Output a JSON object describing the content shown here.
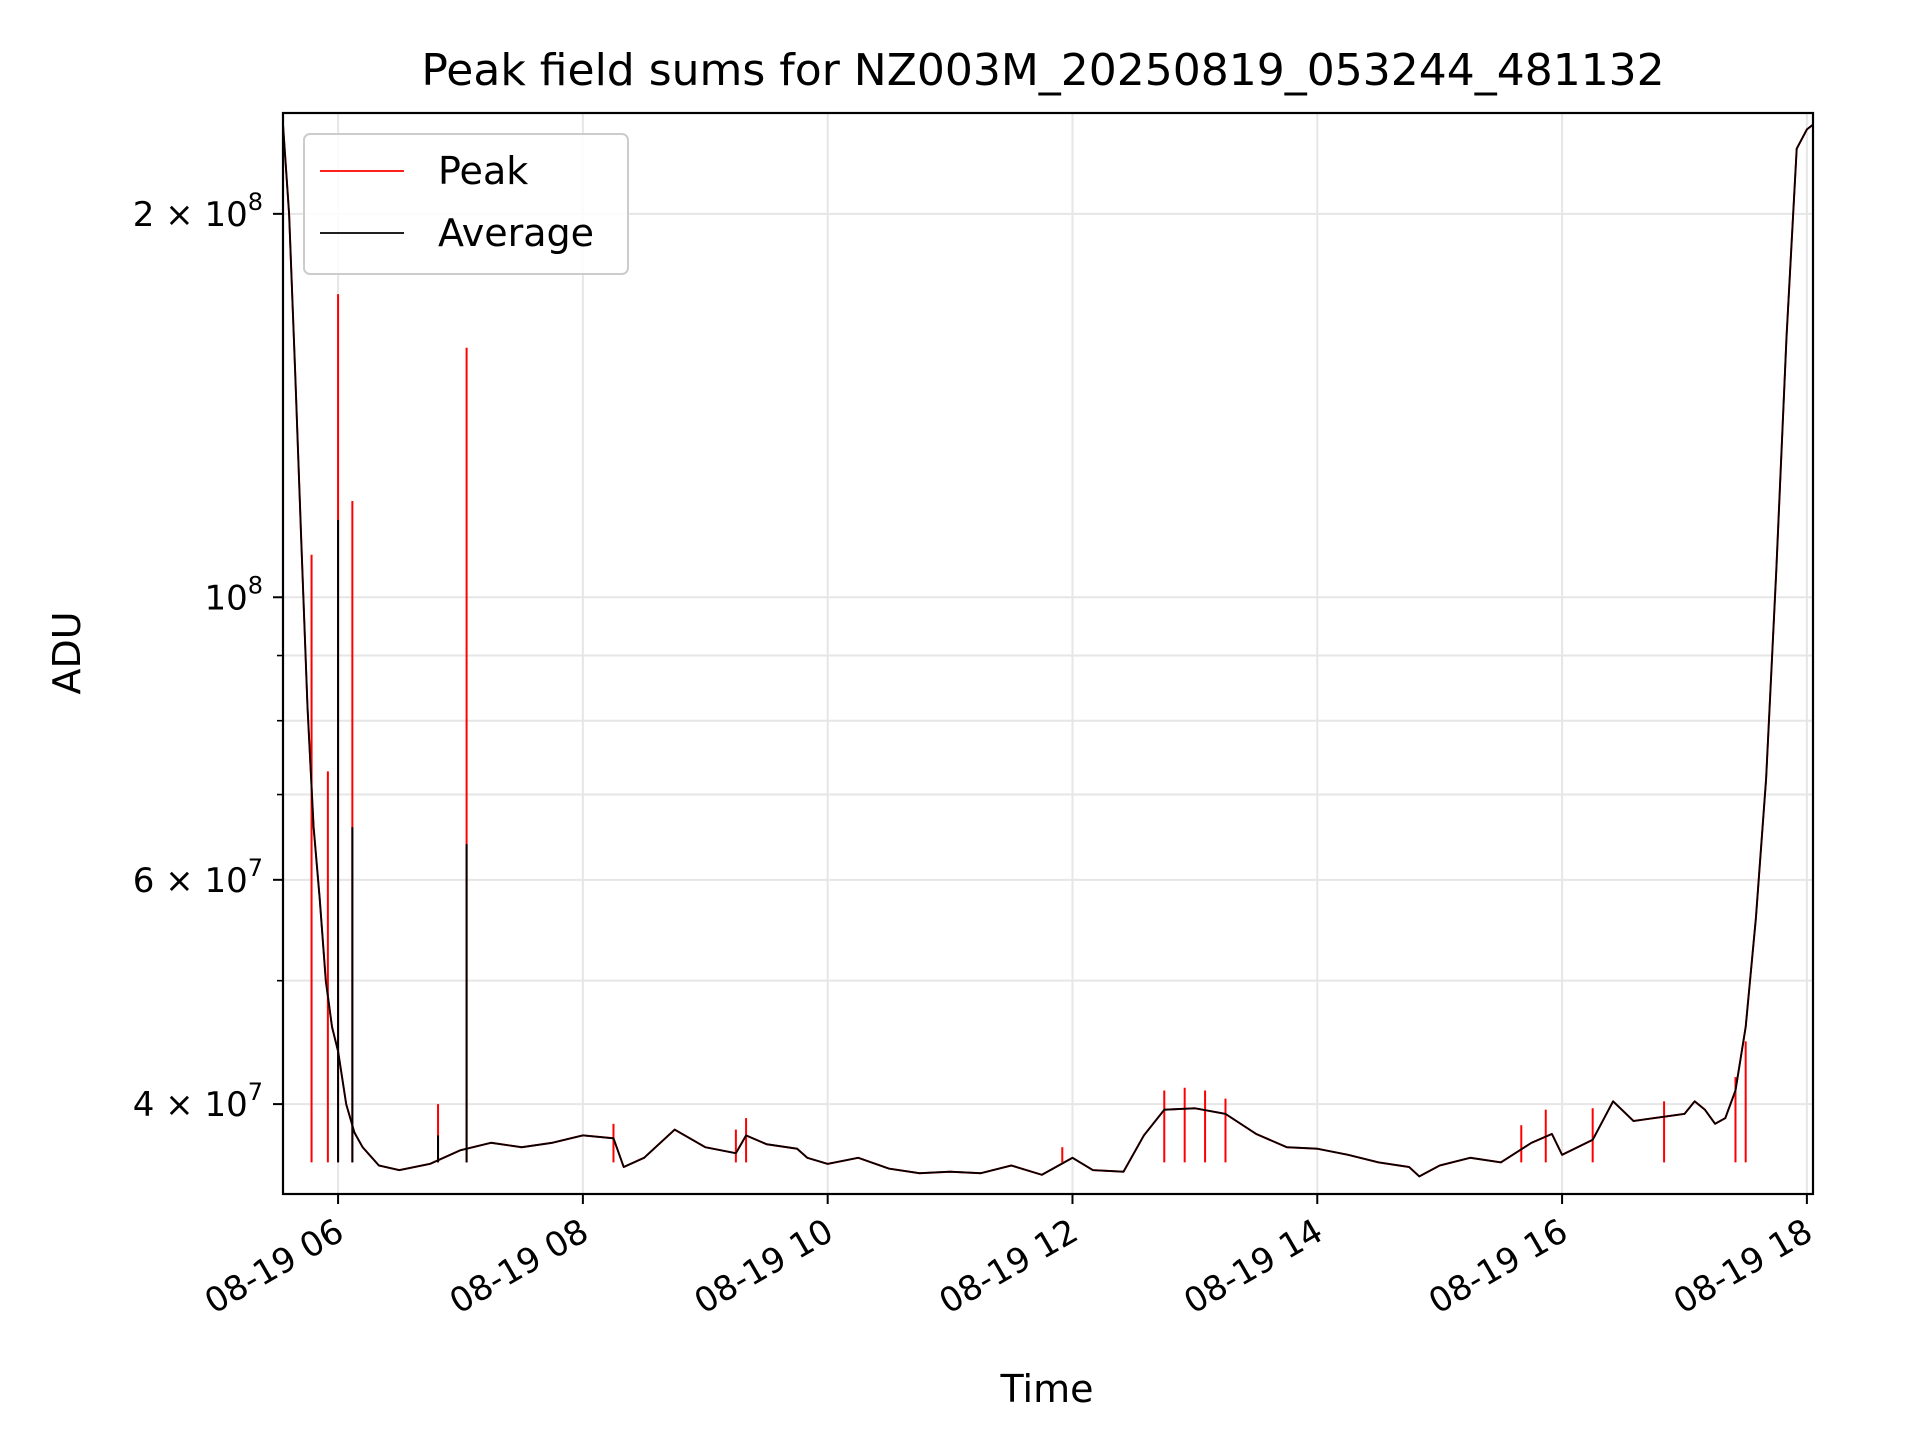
{
  "chart_data": {
    "type": "line",
    "title": "Peak field sums for NZ003M_20250819_053244_481132",
    "xlabel": "Time",
    "ylabel": "ADU",
    "yscale": "log",
    "grid": true,
    "legend_position": "upper-left",
    "xlim": [
      "08-19 05:33",
      "08-19 18:03"
    ],
    "ylim": [
      34000000,
      240000000
    ],
    "x_ticks": [
      {
        "value": "08-19 06:00",
        "label": "08-19 06"
      },
      {
        "value": "08-19 08:00",
        "label": "08-19 08"
      },
      {
        "value": "08-19 10:00",
        "label": "08-19 10"
      },
      {
        "value": "08-19 12:00",
        "label": "08-19 12"
      },
      {
        "value": "08-19 14:00",
        "label": "08-19 14"
      },
      {
        "value": "08-19 16:00",
        "label": "08-19 16"
      },
      {
        "value": "08-19 18:00",
        "label": "08-19 18"
      }
    ],
    "y_ticks": [
      {
        "value": 40000000,
        "label": "4 × 10^7",
        "mant": "4 × 10",
        "exp": "7"
      },
      {
        "value": 60000000,
        "label": "6 × 10^7",
        "mant": "6 × 10",
        "exp": "7"
      },
      {
        "value": 100000000,
        "label": "10^8",
        "mant": "10",
        "exp": "8"
      },
      {
        "value": 200000000,
        "label": "2 × 10^8",
        "mant": "2 × 10",
        "exp": "8"
      }
    ],
    "y_minor_ticks": [
      50000000,
      70000000,
      80000000,
      90000000
    ],
    "series": [
      {
        "name": "Average",
        "color": "#000000",
        "points": [
          [
            "08-19 05:33",
            235000000
          ],
          [
            "08-19 05:36",
            200000000
          ],
          [
            "08-19 05:39",
            150000000
          ],
          [
            "08-19 05:42",
            110000000
          ],
          [
            "08-19 05:45",
            82000000
          ],
          [
            "08-19 05:48",
            66000000
          ],
          [
            "08-19 05:51",
            58000000
          ],
          [
            "08-19 05:54",
            50000000
          ],
          [
            "08-19 05:57",
            46000000
          ],
          [
            "08-19 06:00",
            44000000
          ],
          [
            "08-19 06:04",
            40000000
          ],
          [
            "08-19 06:08",
            38000000
          ],
          [
            "08-19 06:12",
            37000000
          ],
          [
            "08-19 06:20",
            35800000
          ],
          [
            "08-19 06:30",
            35500000
          ],
          [
            "08-19 06:45",
            35900000
          ],
          [
            "08-19 07:00",
            36800000
          ],
          [
            "08-19 07:15",
            37300000
          ],
          [
            "08-19 07:30",
            37000000
          ],
          [
            "08-19 07:45",
            37300000
          ],
          [
            "08-19 08:00",
            37800000
          ],
          [
            "08-19 08:15",
            37600000
          ],
          [
            "08-19 08:20",
            35700000
          ],
          [
            "08-19 08:30",
            36300000
          ],
          [
            "08-19 08:45",
            38200000
          ],
          [
            "08-19 09:00",
            37000000
          ],
          [
            "08-19 09:15",
            36600000
          ],
          [
            "08-19 09:20",
            37800000
          ],
          [
            "08-19 09:30",
            37200000
          ],
          [
            "08-19 09:45",
            36900000
          ],
          [
            "08-19 09:50",
            36300000
          ],
          [
            "08-19 10:00",
            35900000
          ],
          [
            "08-19 10:15",
            36300000
          ],
          [
            "08-19 10:30",
            35600000
          ],
          [
            "08-19 10:45",
            35300000
          ],
          [
            "08-19 11:00",
            35400000
          ],
          [
            "08-19 11:15",
            35300000
          ],
          [
            "08-19 11:30",
            35800000
          ],
          [
            "08-19 11:45",
            35200000
          ],
          [
            "08-19 12:00",
            36300000
          ],
          [
            "08-19 12:10",
            35500000
          ],
          [
            "08-19 12:25",
            35400000
          ],
          [
            "08-19 12:35",
            37800000
          ],
          [
            "08-19 12:45",
            39600000
          ],
          [
            "08-19 13:00",
            39700000
          ],
          [
            "08-19 13:15",
            39300000
          ],
          [
            "08-19 13:30",
            37900000
          ],
          [
            "08-19 13:45",
            37000000
          ],
          [
            "08-19 14:00",
            36900000
          ],
          [
            "08-19 14:15",
            36500000
          ],
          [
            "08-19 14:30",
            36000000
          ],
          [
            "08-19 14:45",
            35700000
          ],
          [
            "08-19 14:50",
            35100000
          ],
          [
            "08-19 15:00",
            35800000
          ],
          [
            "08-19 15:15",
            36300000
          ],
          [
            "08-19 15:30",
            36000000
          ],
          [
            "08-19 15:45",
            37300000
          ],
          [
            "08-19 15:55",
            37900000
          ],
          [
            "08-19 16:00",
            36500000
          ],
          [
            "08-19 16:15",
            37500000
          ],
          [
            "08-19 16:25",
            40200000
          ],
          [
            "08-19 16:35",
            38800000
          ],
          [
            "08-19 16:45",
            39000000
          ],
          [
            "08-19 17:00",
            39300000
          ],
          [
            "08-19 17:05",
            40200000
          ],
          [
            "08-19 17:10",
            39600000
          ],
          [
            "08-19 17:15",
            38600000
          ],
          [
            "08-19 17:20",
            39000000
          ],
          [
            "08-19 17:25",
            41000000
          ],
          [
            "08-19 17:30",
            46000000
          ],
          [
            "08-19 17:35",
            56000000
          ],
          [
            "08-19 17:40",
            72000000
          ],
          [
            "08-19 17:45",
            105000000
          ],
          [
            "08-19 17:50",
            160000000
          ],
          [
            "08-19 17:55",
            225000000
          ],
          [
            "08-19 18:00",
            233000000
          ],
          [
            "08-19 18:03",
            235000000
          ]
        ],
        "spikes": [
          [
            "08-19 06:00",
            115000000
          ],
          [
            "08-19 06:07",
            66000000
          ],
          [
            "08-19 07:03",
            64000000
          ],
          [
            "08-19 06:49",
            37800000
          ]
        ]
      },
      {
        "name": "Peak",
        "color": "#ff0000",
        "spikes": [
          [
            "08-19 05:47",
            108000000
          ],
          [
            "08-19 05:55",
            73000000
          ],
          [
            "08-19 06:00",
            173000000
          ],
          [
            "08-19 06:07",
            119000000
          ],
          [
            "08-19 06:49",
            40000000
          ],
          [
            "08-19 07:03",
            157000000
          ],
          [
            "08-19 08:15",
            38600000
          ],
          [
            "08-19 09:15",
            38200000
          ],
          [
            "08-19 09:20",
            39000000
          ],
          [
            "08-19 11:55",
            37000000
          ],
          [
            "08-19 12:45",
            41000000
          ],
          [
            "08-19 12:55",
            41200000
          ],
          [
            "08-19 13:05",
            41000000
          ],
          [
            "08-19 13:15",
            40400000
          ],
          [
            "08-19 15:40",
            38500000
          ],
          [
            "08-19 15:52",
            39600000
          ],
          [
            "08-19 16:15",
            39700000
          ],
          [
            "08-19 16:50",
            40200000
          ],
          [
            "08-19 17:25",
            42000000
          ],
          [
            "08-19 17:30",
            44800000
          ]
        ]
      }
    ]
  },
  "legend": [
    {
      "label": "Peak",
      "color": "#ff0000"
    },
    {
      "label": "Average",
      "color": "#000000"
    }
  ]
}
